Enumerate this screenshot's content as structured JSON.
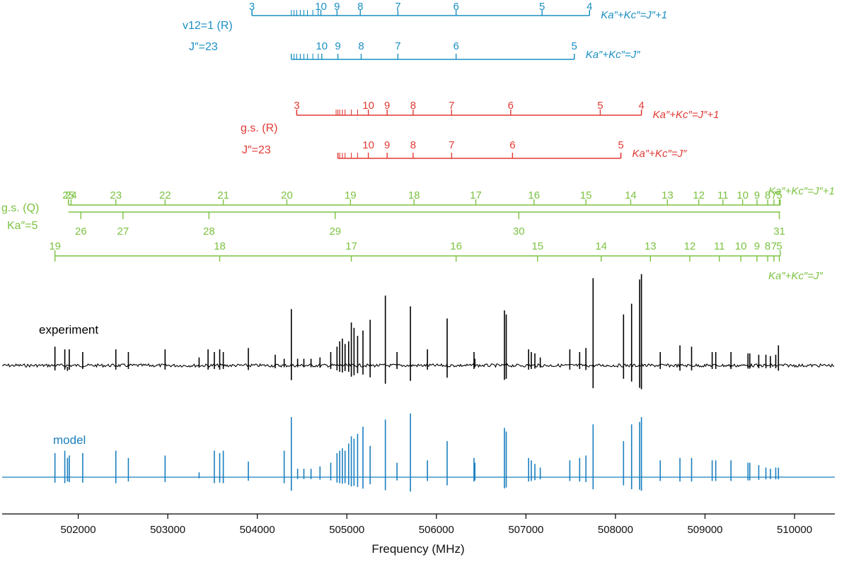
{
  "colors": {
    "v12": "#1a8fc4",
    "gs_r": "#e23a35",
    "gs_q": "#7cc242",
    "experiment": "#000000",
    "model": "#1a7fbf"
  },
  "chart_data": {
    "type": "line",
    "title": "",
    "xlabel": "Frequency (MHz)",
    "ylabel": "",
    "xlim": [
      501150,
      510450
    ],
    "xticks": [
      502000,
      503000,
      504000,
      505000,
      506000,
      507000,
      508000,
      509000,
      510000
    ],
    "xtick_labels": [
      "502000",
      "503000",
      "504000",
      "505000",
      "506000",
      "507000",
      "508000",
      "509000",
      "510000"
    ],
    "grid": false,
    "series": [
      {
        "name": "experiment",
        "x": [
          501740,
          501850,
          501880,
          501900,
          502050,
          502420,
          502560,
          502970,
          503350,
          503450,
          503520,
          503580,
          503620,
          503900,
          504200,
          504300,
          504380,
          504450,
          504520,
          504600,
          504700,
          504820,
          504890,
          504920,
          504950,
          504980,
          505020,
          505050,
          505080,
          505120,
          505180,
          505260,
          505430,
          505560,
          505710,
          505900,
          506120,
          506420,
          506430,
          506760,
          506780,
          507030,
          507060,
          507100,
          507160,
          507490,
          507600,
          507670,
          507750,
          508090,
          508180,
          508270,
          508290,
          508500,
          508720,
          508850,
          509080,
          509120,
          509290,
          509480,
          509500,
          509600,
          509680,
          509730,
          509790,
          509820
        ],
        "y": [
          0.14,
          0.12,
          -0.04,
          0.12,
          0.1,
          0.12,
          0.1,
          0.12,
          0.06,
          0.12,
          0.1,
          0.12,
          0.1,
          0.13,
          0.08,
          0.05,
          0.42,
          0.05,
          0.05,
          0.05,
          0.06,
          0.1,
          0.14,
          0.18,
          0.2,
          0.16,
          0.18,
          0.32,
          0.28,
          0.22,
          0.26,
          0.34,
          0.52,
          0.1,
          0.44,
          0.12,
          0.35,
          0.1,
          0.05,
          0.41,
          0.38,
          0.12,
          0.1,
          0.09,
          0.06,
          0.12,
          0.1,
          0.13,
          0.65,
          0.38,
          0.46,
          0.64,
          0.68,
          0.1,
          0.15,
          0.14,
          0.1,
          0.1,
          0.1,
          0.09,
          0.09,
          0.08,
          0.08,
          0.07,
          0.08,
          0.15
        ]
      },
      {
        "name": "model",
        "x": [
          501740,
          501850,
          501880,
          501900,
          502050,
          502420,
          502560,
          502970,
          503350,
          503520,
          503580,
          503620,
          503900,
          504300,
          504380,
          504450,
          504520,
          504600,
          504700,
          504820,
          504890,
          504920,
          504950,
          504980,
          505020,
          505050,
          505080,
          505120,
          505180,
          505260,
          505430,
          505560,
          505710,
          505900,
          506120,
          506420,
          506430,
          506760,
          506780,
          507030,
          507060,
          507100,
          507160,
          507490,
          507600,
          507670,
          507750,
          508090,
          508180,
          508270,
          508290,
          508500,
          508720,
          508850,
          509080,
          509120,
          509290,
          509480,
          509500,
          509600,
          509680,
          509730,
          509790,
          509820
        ],
        "y": [
          0.2,
          0.22,
          0.16,
          0.18,
          0.2,
          0.22,
          0.16,
          0.18,
          0.04,
          0.22,
          0.2,
          0.22,
          0.13,
          0.22,
          0.5,
          0.07,
          0.07,
          0.07,
          0.09,
          0.12,
          0.2,
          0.22,
          0.24,
          0.22,
          0.28,
          0.34,
          0.32,
          0.36,
          0.42,
          0.26,
          0.48,
          0.12,
          0.53,
          0.14,
          0.3,
          0.16,
          0.12,
          0.41,
          0.38,
          0.16,
          0.14,
          0.11,
          0.08,
          0.14,
          0.16,
          0.18,
          0.44,
          0.3,
          0.44,
          0.46,
          0.5,
          0.14,
          0.16,
          0.16,
          0.14,
          0.14,
          0.14,
          0.12,
          0.12,
          0.1,
          0.08,
          0.07,
          0.08,
          0.08
        ]
      }
    ],
    "series_labels": {
      "experiment": "experiment",
      "model": "model"
    },
    "progressions": [
      {
        "id": "v12",
        "color_key": "v12",
        "label_html": [
          "v<tspan font-size='12' dy='4'>12</tspan><tspan dy='-4'>=1 (</tspan><tspan font-style='italic'>R</tspan>)",
          "J''=23"
        ],
        "label_lines": [
          "v12=1 (R)",
          "J″=23"
        ],
        "branches": [
          {
            "label": "Ka″+Kc″=J″+1",
            "start": 503940,
            "end": 507710,
            "head_ticks": [
              504380,
              504410,
              504440,
              504480,
              504520,
              504560,
              504620,
              504680
            ],
            "lines": [
              {
                "x": 503940,
                "label": "3"
              },
              {
                "x": 504710,
                "label": "10"
              },
              {
                "x": 504890,
                "label": "9"
              },
              {
                "x": 505150,
                "label": "8"
              },
              {
                "x": 505570,
                "label": "7"
              },
              {
                "x": 506220,
                "label": "6"
              },
              {
                "x": 507180,
                "label": "5"
              },
              {
                "x": 507710,
                "label": "4"
              }
            ]
          },
          {
            "label": "Ka″+Kc″=J″",
            "start": 504380,
            "end": 507540,
            "head_ticks": [
              504380,
              504410,
              504440,
              504480,
              504520,
              504560,
              504620,
              504680
            ],
            "lines": [
              {
                "x": 504720,
                "label": "10"
              },
              {
                "x": 504900,
                "label": "9"
              },
              {
                "x": 505160,
                "label": "8"
              },
              {
                "x": 505570,
                "label": "7"
              },
              {
                "x": 506220,
                "label": "6"
              },
              {
                "x": 507540,
                "label": "5"
              }
            ]
          }
        ]
      },
      {
        "id": "gs_r",
        "color_key": "gs_r",
        "label_lines": [
          "g.s. (R)",
          "J″=23"
        ],
        "branches": [
          {
            "label": "Ka″+Kc″=J″+1",
            "start": 504440,
            "end": 508290,
            "head_ticks": [
              504880,
              504900,
              504920,
              504950,
              504980,
              505050,
              505120
            ],
            "lines": [
              {
                "x": 504440,
                "label": "3"
              },
              {
                "x": 505240,
                "label": "10"
              },
              {
                "x": 505450,
                "label": "9"
              },
              {
                "x": 505740,
                "label": "8"
              },
              {
                "x": 506170,
                "label": "7"
              },
              {
                "x": 506830,
                "label": "6"
              },
              {
                "x": 507830,
                "label": "5"
              },
              {
                "x": 508290,
                "label": "4"
              }
            ]
          },
          {
            "label": "Ka″+Kc″=J″",
            "start": 504900,
            "end": 508060,
            "head_ticks": [
              504900,
              504920,
              504950,
              504980,
              505050,
              505120
            ],
            "lines": [
              {
                "x": 505240,
                "label": "10"
              },
              {
                "x": 505450,
                "label": "9"
              },
              {
                "x": 505740,
                "label": "8"
              },
              {
                "x": 506170,
                "label": "7"
              },
              {
                "x": 506850,
                "label": "6"
              },
              {
                "x": 508060,
                "label": "5"
              }
            ]
          }
        ]
      },
      {
        "id": "gs_q",
        "color_key": "gs_q",
        "label_lines": [
          "g.s. (Q)",
          "Ka″=5"
        ],
        "branches": [
          {
            "label": "Ka″+Kc″=J″+1",
            "start": 501890,
            "end": 509840,
            "lines": [
              {
                "x": 501890,
                "label": "25"
              },
              {
                "x": 501920,
                "label": "24"
              },
              {
                "x": 502420,
                "label": "23"
              },
              {
                "x": 502970,
                "label": "22"
              },
              {
                "x": 503620,
                "label": "21"
              },
              {
                "x": 504330,
                "label": "20"
              },
              {
                "x": 505040,
                "label": "19"
              },
              {
                "x": 505750,
                "label": "18"
              },
              {
                "x": 506440,
                "label": "17"
              },
              {
                "x": 507090,
                "label": "16"
              },
              {
                "x": 507670,
                "label": "15"
              },
              {
                "x": 508170,
                "label": "14"
              },
              {
                "x": 508580,
                "label": "13"
              },
              {
                "x": 508930,
                "label": "12"
              },
              {
                "x": 509200,
                "label": "11"
              },
              {
                "x": 509420,
                "label": "10"
              },
              {
                "x": 509580,
                "label": "9"
              },
              {
                "x": 509700,
                "label": "8"
              },
              {
                "x": 509770,
                "label": "7"
              },
              {
                "x": 509830,
                "label": "5"
              }
            ]
          },
          {
            "label": "",
            "start": 501890,
            "end": 509840,
            "lines": [
              {
                "x": 502030,
                "label": "26"
              },
              {
                "x": 502500,
                "label": "27"
              },
              {
                "x": 503460,
                "label": "28"
              },
              {
                "x": 504870,
                "label": "29"
              },
              {
                "x": 506920,
                "label": "30"
              },
              {
                "x": 509830,
                "label": "31"
              }
            ]
          },
          {
            "label": "Ka″+Kc″=J″",
            "start": 501740,
            "end": 509840,
            "lines": [
              {
                "x": 501740,
                "label": "19"
              },
              {
                "x": 503580,
                "label": "18"
              },
              {
                "x": 505050,
                "label": "17"
              },
              {
                "x": 506220,
                "label": "16"
              },
              {
                "x": 507130,
                "label": "15"
              },
              {
                "x": 507840,
                "label": "14"
              },
              {
                "x": 508390,
                "label": "13"
              },
              {
                "x": 508830,
                "label": "12"
              },
              {
                "x": 509160,
                "label": "11"
              },
              {
                "x": 509400,
                "label": "10"
              },
              {
                "x": 509580,
                "label": "9"
              },
              {
                "x": 509700,
                "label": "8"
              },
              {
                "x": 509770,
                "label": "7"
              },
              {
                "x": 509830,
                "label": "5"
              }
            ]
          }
        ]
      }
    ]
  }
}
